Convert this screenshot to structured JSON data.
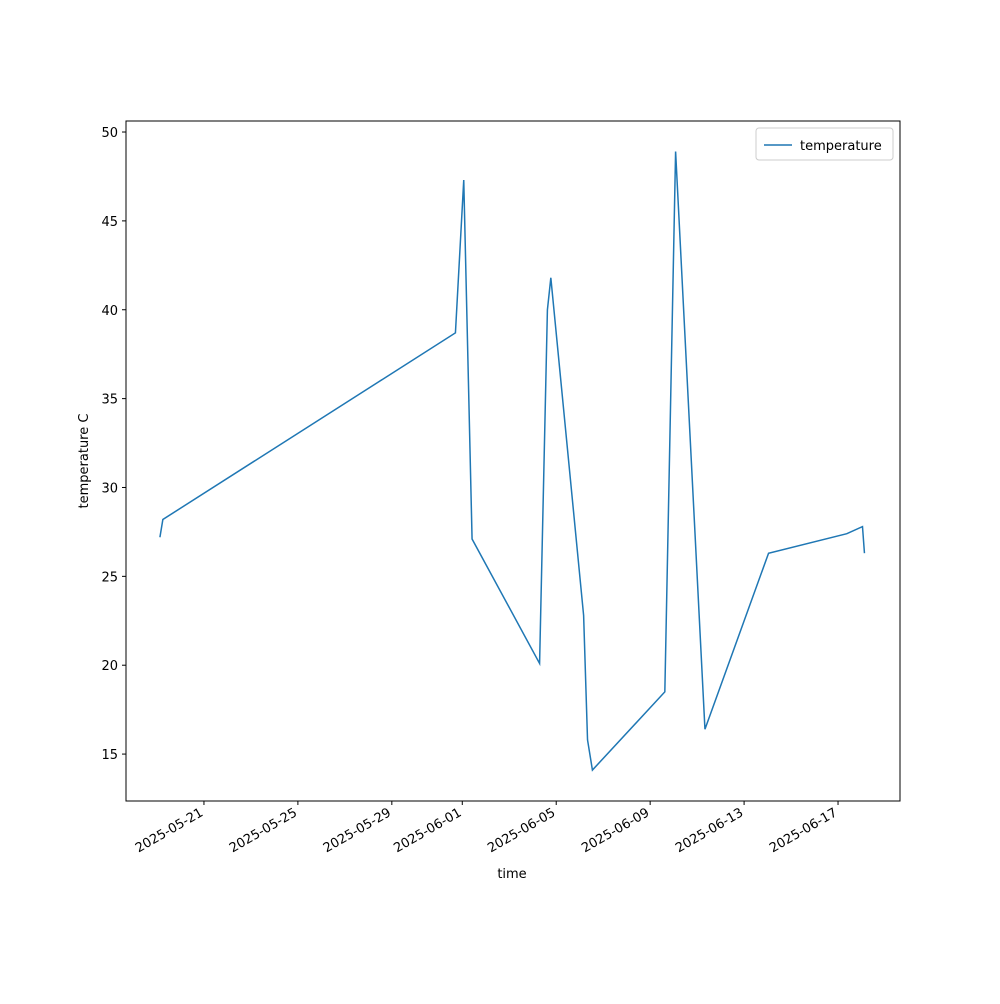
{
  "chart_data": {
    "type": "line",
    "x_label": "time",
    "y_label": "temperature C",
    "x": [
      "2025-05-19T03:00",
      "2025-05-19T06:00",
      "2025-05-31T17:00",
      "2025-06-01T01:30",
      "2025-06-01T10:00",
      "2025-06-04T07:00",
      "2025-06-04T15:00",
      "2025-06-04T18:30",
      "2025-06-06T04:00",
      "2025-06-06T08:00",
      "2025-06-06T13:00",
      "2025-06-09T15:00",
      "2025-06-10T02:00",
      "2025-06-11T08:00",
      "2025-06-14T01:00",
      "2025-06-17T09:00",
      "2025-06-18T01:00",
      "2025-06-18T03:00"
    ],
    "series": [
      {
        "name": "temperature",
        "color": "#1f77b4",
        "values": [
          27.2,
          28.2,
          38.7,
          47.3,
          27.1,
          20.1,
          40.0,
          41.8,
          22.8,
          15.8,
          14.1,
          18.5,
          48.9,
          16.4,
          26.3,
          27.4,
          27.8,
          26.3
        ]
      }
    ],
    "xlim": [
      "2025-05-17T16:20",
      "2025-06-19T15:20"
    ],
    "xticks": [
      "2025-05-21",
      "2025-05-25",
      "2025-05-29",
      "2025-06-01",
      "2025-06-05",
      "2025-06-09",
      "2025-06-13",
      "2025-06-17"
    ],
    "ylim": [
      12.36,
      50.62
    ],
    "yticks": [
      15,
      20,
      25,
      30,
      35,
      40,
      45,
      50
    ],
    "legend": "upper right",
    "grid": false
  }
}
